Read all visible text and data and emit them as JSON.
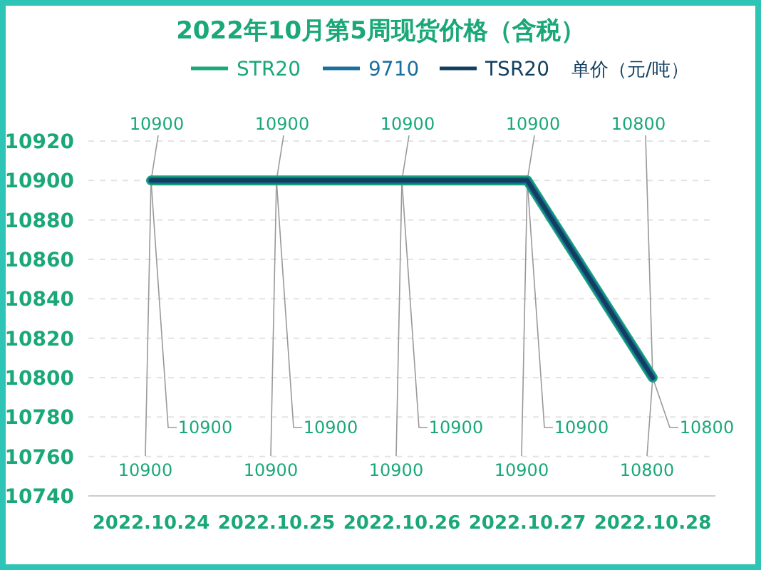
{
  "chart_data": {
    "type": "line",
    "title": "2022年10月第5周现货价格（含税）",
    "legend_title": "单价（元/吨）",
    "categories": [
      "2022.10.24",
      "2022.10.25",
      "2022.10.26",
      "2022.10.27",
      "2022.10.28"
    ],
    "series": [
      {
        "name": "STR20",
        "color": "#19a878",
        "values": [
          10900,
          10900,
          10900,
          10900,
          10800
        ]
      },
      {
        "name": "9710",
        "color": "#1b6f9c",
        "values": [
          10900,
          10900,
          10900,
          10900,
          10800
        ]
      },
      {
        "name": "TSR20",
        "color": "#123f5e",
        "values": [
          10900,
          10900,
          10900,
          10900,
          10800
        ]
      }
    ],
    "ylim": [
      10740,
      10920
    ],
    "yticks": [
      10740,
      10760,
      10780,
      10800,
      10820,
      10840,
      10860,
      10880,
      10900,
      10920
    ],
    "annotations": [
      {
        "text": "10900",
        "x": "2022.10.24",
        "y": 10900
      },
      {
        "text": "10900",
        "x": "2022.10.25",
        "y": 10900
      },
      {
        "text": "10900",
        "x": "2022.10.26",
        "y": 10900
      },
      {
        "text": "10900",
        "x": "2022.10.27",
        "y": 10900
      },
      {
        "text": "10800",
        "x": "2022.10.28",
        "y": 10800
      },
      {
        "text": "10900",
        "x": "2022.10.24",
        "y": 10900
      },
      {
        "text": "10900",
        "x": "2022.10.25",
        "y": 10900
      },
      {
        "text": "10900",
        "x": "2022.10.26",
        "y": 10900
      },
      {
        "text": "10900",
        "x": "2022.10.27",
        "y": 10900
      },
      {
        "text": "10800",
        "x": "2022.10.28",
        "y": 10800
      },
      {
        "text": "10900",
        "x": "2022.10.24",
        "y": 10900
      },
      {
        "text": "10900",
        "x": "2022.10.25",
        "y": 10900
      },
      {
        "text": "10900",
        "x": "2022.10.26",
        "y": 10900
      },
      {
        "text": "10900",
        "x": "2022.10.27",
        "y": 10900
      },
      {
        "text": "10800",
        "x": "2022.10.28",
        "y": 10800
      }
    ],
    "grid": "y",
    "legend": "top",
    "marker": "none",
    "line_style": "solid"
  }
}
